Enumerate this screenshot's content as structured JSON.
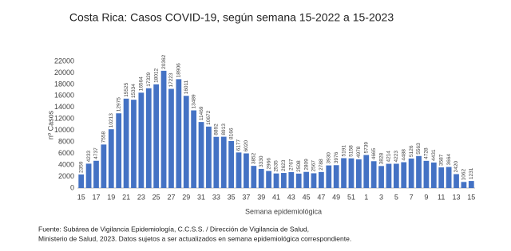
{
  "chart_data": {
    "type": "bar",
    "title": "Costa Rica: Casos COVID-19, según semana 15-2022 a 15-2023",
    "y_label": "nº Casos",
    "x_label": "Semana epidemiológica",
    "categories": [
      "15",
      null,
      "17",
      null,
      "19",
      null,
      "21",
      null,
      "23",
      null,
      "25",
      null,
      "27",
      null,
      "29",
      null,
      "31",
      null,
      "33",
      null,
      "35",
      null,
      "37",
      null,
      "39",
      null,
      "41",
      null,
      "43",
      null,
      "45",
      null,
      "47",
      null,
      "49",
      null,
      "51",
      null,
      "1",
      null,
      "3",
      null,
      "5",
      null,
      "7",
      null,
      "9",
      null,
      "11",
      null,
      "13",
      null,
      "15"
    ],
    "values": [
      2359,
      4233,
      4737,
      7558,
      10213,
      12975,
      15525,
      15334,
      16564,
      17329,
      18012,
      20362,
      17223,
      18906,
      16011,
      13489,
      11469,
      10672,
      8892,
      8913,
      8166,
      6177,
      6020,
      3852,
      3330,
      2966,
      2535,
      2623,
      2767,
      2508,
      2809,
      2567,
      2788,
      3930,
      3976,
      5191,
      5158,
      4978,
      5739,
      4665,
      3828,
      4214,
      4223,
      4488,
      5126,
      5563,
      4728,
      4431,
      3587,
      3664,
      2420,
      1062,
      1231
    ],
    "color": "#4472c4",
    "ylim": [
      0,
      22000
    ],
    "yticks": [
      0,
      2000,
      4000,
      6000,
      8000,
      10000,
      12000,
      14000,
      16000,
      18000,
      20000,
      22000
    ],
    "grid": false,
    "notes": [
      "Fuente: Subárea de Vigilancia  Epidemiología, C.C.S.S. / Dirección de Vigilancia de Salud,",
      "Ministerio de Salud,  2023.  Datos sujetos a ser actualizados en semana epidemiológica correspondiente."
    ]
  }
}
